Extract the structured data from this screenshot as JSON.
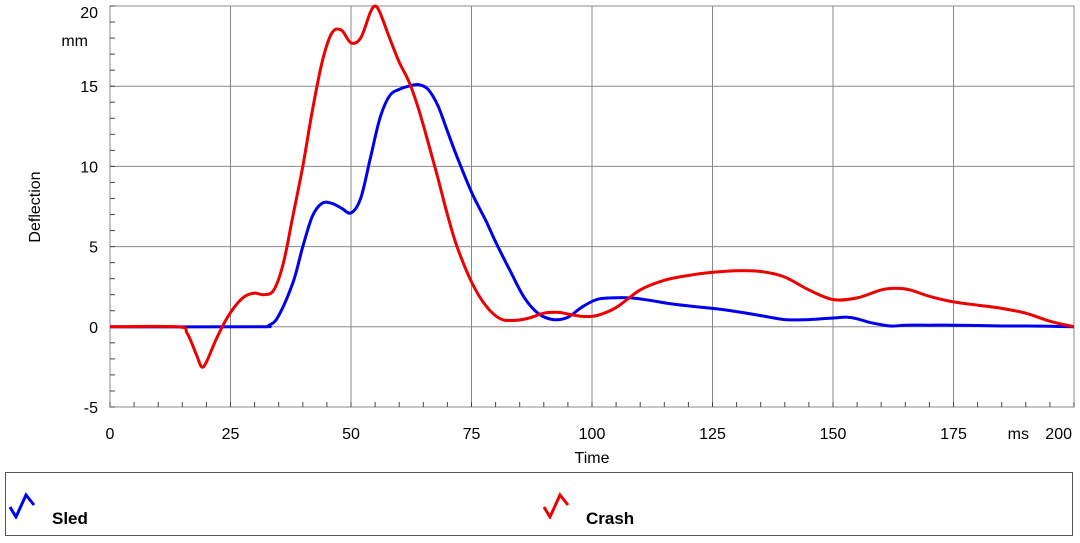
{
  "chart_data": {
    "type": "line",
    "title": "",
    "xlabel": "Time",
    "ylabel": "Deflection",
    "x_unit": "ms",
    "y_unit": "mm",
    "xlim": [
      0,
      200
    ],
    "ylim": [
      -5,
      20
    ],
    "x_ticks": [
      0,
      25,
      50,
      75,
      100,
      125,
      150,
      175,
      200
    ],
    "x_tick_labels": [
      "0",
      "25",
      "50",
      "75",
      "100",
      "125",
      "150",
      "175",
      "200"
    ],
    "y_ticks": [
      -5,
      0,
      5,
      10,
      15,
      20
    ],
    "y_tick_labels": [
      "-5",
      "0",
      "5",
      "10",
      "15",
      "20"
    ],
    "grid": true,
    "legend_position": "bottom",
    "series": [
      {
        "name": "Sled",
        "color": "#0000ee",
        "x": [
          0,
          30,
          33,
          35,
          38,
          40,
          42,
          44,
          46,
          48,
          50,
          52,
          54,
          56,
          58,
          60,
          62,
          64,
          66,
          68,
          70,
          72,
          75,
          78,
          80,
          83,
          86,
          89,
          92,
          95,
          98,
          101,
          104,
          108,
          112,
          116,
          120,
          125,
          130,
          135,
          140,
          145,
          150,
          153,
          155,
          158,
          162,
          165,
          170,
          175,
          180,
          185,
          190,
          195,
          200
        ],
        "y": [
          0,
          0,
          0.1,
          0.7,
          2.8,
          5.0,
          6.9,
          7.7,
          7.7,
          7.4,
          7.1,
          8.0,
          10.5,
          13.0,
          14.4,
          14.8,
          15.0,
          15.1,
          14.8,
          13.8,
          12.2,
          10.6,
          8.4,
          6.6,
          5.3,
          3.5,
          1.8,
          0.8,
          0.45,
          0.6,
          1.25,
          1.7,
          1.8,
          1.8,
          1.65,
          1.45,
          1.3,
          1.15,
          0.95,
          0.7,
          0.45,
          0.45,
          0.55,
          0.6,
          0.5,
          0.25,
          0.05,
          0.1,
          0.1,
          0.1,
          0.08,
          0.05,
          0.05,
          0.03,
          0
        ]
      },
      {
        "name": "Crash",
        "color": "#ee0000",
        "x": [
          0,
          14,
          16,
          18,
          19,
          20,
          22,
          24,
          26,
          28,
          30,
          32,
          34,
          36,
          38,
          40,
          42,
          44,
          46,
          48,
          50,
          52,
          54,
          55,
          56,
          58,
          60,
          62,
          64,
          66,
          68,
          70,
          72,
          75,
          78,
          81,
          84,
          87,
          90,
          93,
          95,
          98,
          101,
          105,
          110,
          115,
          120,
          125,
          130,
          135,
          140,
          145,
          150,
          155,
          160,
          163,
          166,
          170,
          175,
          180,
          185,
          190,
          195,
          200
        ],
        "y": [
          0,
          0,
          -0.4,
          -1.8,
          -2.5,
          -2.2,
          -0.8,
          0.4,
          1.3,
          1.9,
          2.1,
          2.0,
          2.3,
          4.0,
          7.0,
          10.0,
          13.5,
          16.5,
          18.3,
          18.5,
          17.7,
          18.0,
          19.6,
          20.0,
          19.6,
          18.0,
          16.5,
          15.3,
          13.6,
          11.5,
          9.3,
          7.0,
          5.0,
          2.8,
          1.3,
          0.5,
          0.4,
          0.55,
          0.85,
          0.9,
          0.8,
          0.65,
          0.7,
          1.2,
          2.3,
          2.9,
          3.2,
          3.4,
          3.5,
          3.45,
          3.1,
          2.3,
          1.7,
          1.8,
          2.3,
          2.4,
          2.3,
          1.9,
          1.55,
          1.35,
          1.15,
          0.85,
          0.35,
          0
        ]
      }
    ]
  },
  "colors": {
    "sled": "#0000ee",
    "crash": "#ee0000",
    "grid": "#888888"
  }
}
